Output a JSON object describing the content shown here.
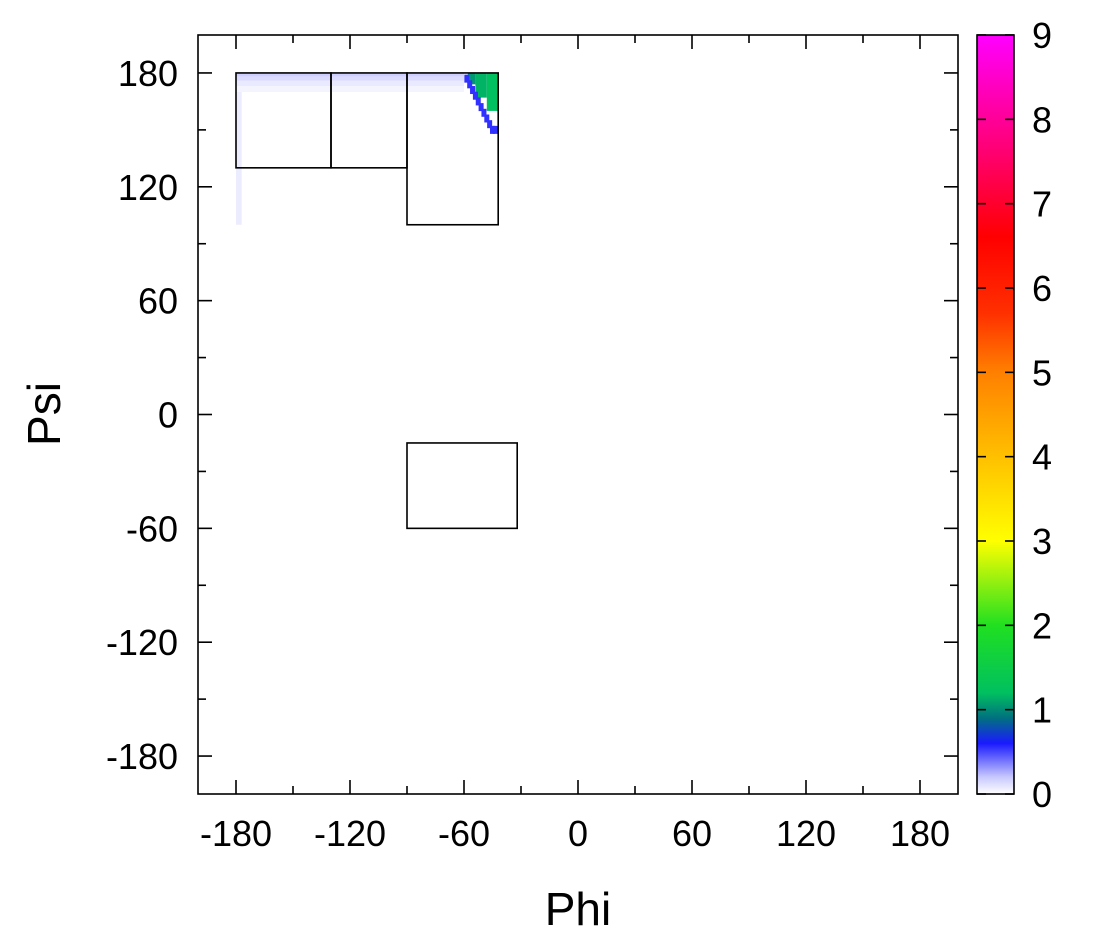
{
  "chart_data": {
    "type": "heatmap",
    "title": "",
    "xlabel": "Phi",
    "ylabel": "Psi",
    "xlim": [
      -200,
      200
    ],
    "ylim": [
      -200,
      200
    ],
    "xticks": [
      -180,
      -120,
      -60,
      0,
      60,
      120,
      180
    ],
    "yticks": [
      -180,
      -120,
      -60,
      0,
      60,
      120,
      180
    ],
    "xtick_labels": [
      "-180",
      "-120",
      "-60",
      "0",
      "60",
      "120",
      "180"
    ],
    "ytick_labels": [
      "-180",
      "-120",
      "-60",
      "0",
      "60",
      "120",
      "180"
    ],
    "minor_tick_step": 30,
    "grid": false,
    "colorbar": {
      "range": [
        0,
        9
      ],
      "ticks": [
        0,
        1,
        2,
        3,
        4,
        5,
        6,
        7,
        8,
        9
      ],
      "tick_labels": [
        "0",
        "1",
        "2",
        "3",
        "4",
        "5",
        "6",
        "7",
        "8",
        "9"
      ],
      "gradient": [
        {
          "value": 0.0,
          "color": "#ffffff"
        },
        {
          "value": 0.2,
          "color": "#c8c8ff"
        },
        {
          "value": 0.6,
          "color": "#1a1aff"
        },
        {
          "value": 0.9,
          "color": "#007080"
        },
        {
          "value": 1.2,
          "color": "#00c060"
        },
        {
          "value": 2.0,
          "color": "#20e020"
        },
        {
          "value": 3.0,
          "color": "#ffff00"
        },
        {
          "value": 4.0,
          "color": "#ffc000"
        },
        {
          "value": 5.0,
          "color": "#ff8000"
        },
        {
          "value": 5.7,
          "color": "#ff3000"
        },
        {
          "value": 6.6,
          "color": "#ff0000"
        },
        {
          "value": 7.6,
          "color": "#ff0070"
        },
        {
          "value": 8.4,
          "color": "#ff00c0"
        },
        {
          "value": 9.0,
          "color": "#ff00ff"
        }
      ]
    },
    "regions": [
      {
        "phi": [
          -180,
          -130
        ],
        "psi": [
          130,
          180
        ]
      },
      {
        "phi": [
          -130,
          -90
        ],
        "psi": [
          130,
          180
        ]
      },
      {
        "phi": [
          -90,
          -42
        ],
        "psi": [
          100,
          180
        ]
      },
      {
        "phi": [
          -90,
          -32
        ],
        "psi": [
          -60,
          -15
        ]
      }
    ],
    "density_cells": [
      {
        "phi": [
          -180,
          -60
        ],
        "psi": [
          178,
          180
        ],
        "value": 0.18
      },
      {
        "phi": [
          -180,
          -60
        ],
        "psi": [
          176,
          178
        ],
        "value": 0.13
      },
      {
        "phi": [
          -180,
          -60
        ],
        "psi": [
          173,
          176
        ],
        "value": 0.08
      },
      {
        "phi": [
          -180,
          -60
        ],
        "psi": [
          170,
          173
        ],
        "value": 0.04
      },
      {
        "phi": [
          -180,
          -177
        ],
        "psi": [
          100,
          170
        ],
        "value": 0.07
      },
      {
        "phi": [
          -48,
          -42
        ],
        "psi": [
          160,
          180
        ],
        "value": 1.2
      },
      {
        "phi": [
          -54,
          -48
        ],
        "psi": [
          167,
          180
        ],
        "value": 1.15
      },
      {
        "phi": [
          -58,
          -54
        ],
        "psi": [
          174,
          180
        ],
        "value": 1.05
      }
    ],
    "density_edge": [
      {
        "phi": -58.5,
        "psi": 177,
        "value": 0.55
      },
      {
        "phi": -57.0,
        "psi": 174,
        "value": 0.55
      },
      {
        "phi": -55.5,
        "psi": 171,
        "value": 0.55
      },
      {
        "phi": -54.0,
        "psi": 168,
        "value": 0.55
      },
      {
        "phi": -52.5,
        "psi": 165,
        "value": 0.55
      },
      {
        "phi": -51.0,
        "psi": 162,
        "value": 0.55
      },
      {
        "phi": -49.5,
        "psi": 159,
        "value": 0.55
      },
      {
        "phi": -48.0,
        "psi": 156,
        "value": 0.55
      },
      {
        "phi": -46.5,
        "psi": 153,
        "value": 0.55
      },
      {
        "phi": -45.0,
        "psi": 150,
        "value": 0.55
      },
      {
        "phi": -43.5,
        "psi": 150,
        "value": 0.55
      }
    ]
  }
}
